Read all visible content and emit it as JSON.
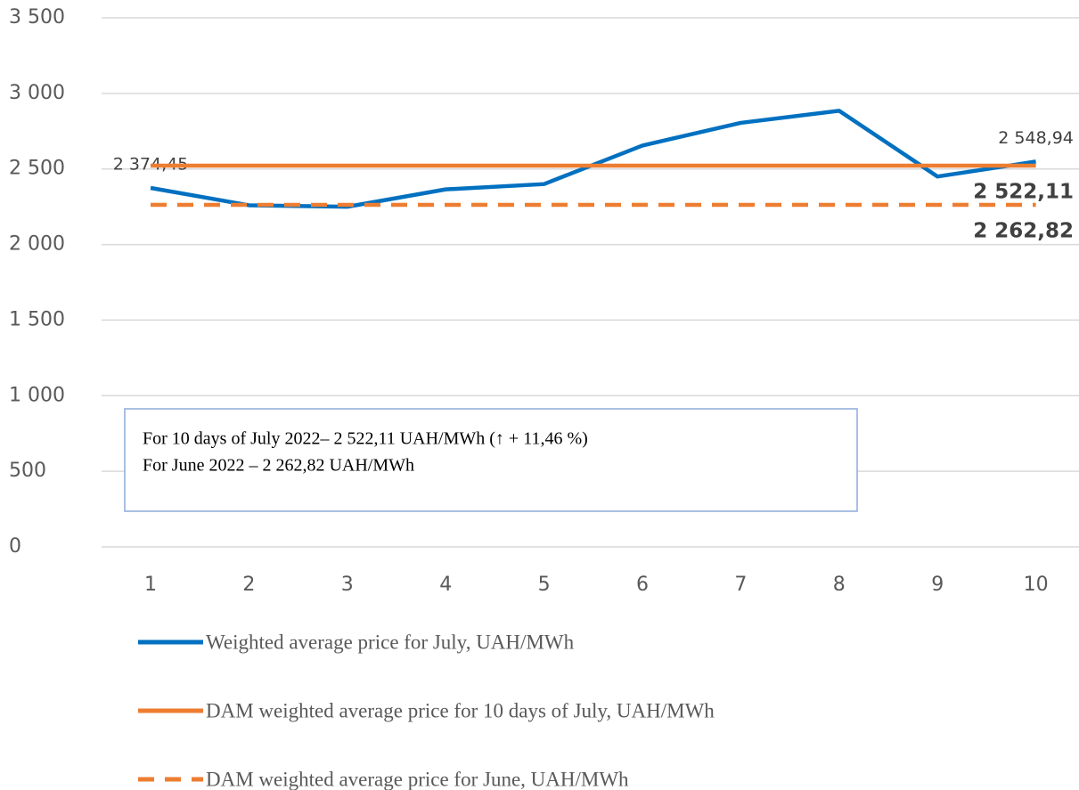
{
  "chart_data": {
    "type": "line",
    "categories": [
      "1",
      "2",
      "3",
      "4",
      "5",
      "6",
      "7",
      "8",
      "9",
      "10"
    ],
    "series": [
      {
        "name": "Weighted average price for July, UAH/MWh",
        "color": "#0070c0",
        "style": "solid",
        "values": [
          2374.45,
          2260,
          2250,
          2365,
          2400,
          2655,
          2805,
          2885,
          2450,
          2548.94
        ],
        "value_labels": [
          "2 374,45",
          null,
          null,
          null,
          null,
          null,
          null,
          null,
          null,
          "2 548,94"
        ]
      },
      {
        "name": "DAM weighted average price for 10 days of July, UAH/MWh",
        "color": "#ed7d31",
        "style": "solid",
        "values": [
          2522.11,
          2522.11,
          2522.11,
          2522.11,
          2522.11,
          2522.11,
          2522.11,
          2522.11,
          2522.11,
          2522.11
        ],
        "value_labels": [
          null,
          null,
          null,
          null,
          null,
          null,
          null,
          null,
          null,
          "2 522,11"
        ]
      },
      {
        "name": "DAM weighted average price for June, UAH/MWh",
        "color": "#ed7d31",
        "style": "dashed",
        "values": [
          2262.82,
          2262.82,
          2262.82,
          2262.82,
          2262.82,
          2262.82,
          2262.82,
          2262.82,
          2262.82,
          2262.82
        ],
        "value_labels": [
          null,
          null,
          null,
          null,
          null,
          null,
          null,
          null,
          null,
          "2 262,82"
        ]
      }
    ],
    "ylim": [
      0,
      3500
    ],
    "yticks": [
      0,
      500,
      {
        "value": 1000,
        "label": "1 000"
      },
      {
        "value": 1500,
        "label": "1 500"
      },
      {
        "value": 2000,
        "label": "2 000"
      },
      {
        "value": 2500,
        "label": "2 500"
      },
      {
        "value": 3000,
        "label": "3 000"
      },
      {
        "value": 3500,
        "label": "3 500"
      }
    ],
    "grid": true,
    "annotations": [
      "For 10 days of July 2022– 2 522,11 UAH/MWh (↑ + 11,46 %)",
      "For June 2022 – 2 262,82 UAH/MWh"
    ]
  }
}
